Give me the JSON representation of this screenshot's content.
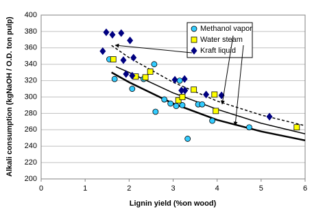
{
  "chart_data": {
    "type": "scatter",
    "xlabel": "Lignin yield (%on wood)",
    "ylabel": "Alkali consumption (kgNaOH / O.D. ton pulp)",
    "xlim": [
      0,
      6
    ],
    "xticks": [
      0,
      1,
      2,
      3,
      4,
      5,
      6
    ],
    "ylim": [
      200,
      400
    ],
    "yticks": [
      200,
      220,
      240,
      260,
      280,
      300,
      320,
      340,
      360,
      380,
      400
    ],
    "grid": true,
    "series": [
      {
        "name": "Methanol vapor",
        "color": "#33ccff",
        "marker": "circle",
        "x": [
          1.55,
          1.67,
          2.07,
          2.33,
          2.57,
          2.6,
          2.8,
          2.94,
          3.07,
          3.15,
          3.21,
          3.33,
          3.57,
          3.66,
          3.89,
          4.73
        ],
        "values": [
          346,
          322,
          310,
          322,
          340,
          282,
          297,
          292,
          289,
          320,
          290,
          249,
          291,
          291,
          271,
          263
        ]
      },
      {
        "name": "Water steam",
        "color": "#ffff00",
        "marker": "square",
        "x": [
          1.64,
          2.15,
          2.37,
          2.48,
          3.12,
          3.21,
          3.47,
          3.94,
          3.97,
          5.81
        ],
        "values": [
          346,
          325,
          324,
          331,
          296,
          300,
          309,
          303,
          283,
          263
        ]
      },
      {
        "name": "Kraft liquid",
        "color": "#000080",
        "marker": "diamond",
        "x": [
          1.48,
          1.62,
          1.82,
          2.02,
          1.4,
          2.1,
          1.87,
          1.93,
          2.07,
          3.04,
          3.26,
          3.19,
          3.27,
          3.75,
          4.1,
          5.19
        ],
        "values": [
          379,
          376,
          378,
          369,
          356,
          348,
          345,
          328,
          326,
          321,
          322,
          308,
          308,
          303,
          302,
          276
        ]
      }
    ],
    "fit_lines": [
      {
        "x": [
          1.6,
          2,
          3,
          4,
          5,
          6
        ],
        "values": [
          363,
          348,
          318,
          295,
          278,
          265
        ],
        "color": "#000000",
        "dash": true,
        "width": 1.5
      },
      {
        "x": [
          1.7,
          2,
          3,
          4,
          5,
          6
        ],
        "values": [
          337,
          330,
          305,
          285,
          268,
          255
        ],
        "color": "#000000",
        "dash": false,
        "width": 1.5
      },
      {
        "x": [
          1.6,
          2,
          3,
          4,
          5,
          6
        ],
        "values": [
          330,
          318,
          292,
          272,
          258,
          247
        ],
        "color": "#000000",
        "dash": false,
        "width": 2.5
      }
    ]
  }
}
